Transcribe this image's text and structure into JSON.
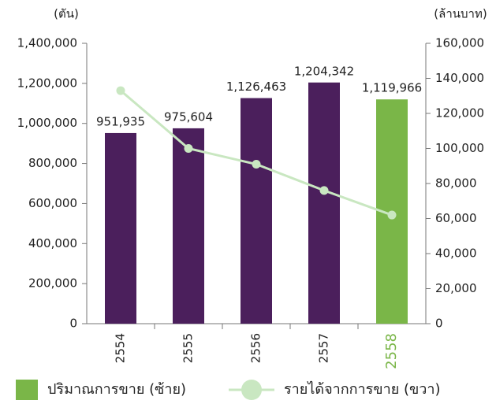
{
  "chart_data": {
    "type": "bar",
    "ylabel": "(ตัน)",
    "y2label": "(ล้านบาท)",
    "categories": [
      "2554",
      "2555",
      "2556",
      "2557",
      "2558"
    ],
    "series": [
      {
        "name": "ปริมาณการขาย (ซ้าย)",
        "type": "bar",
        "color": "#7ab648",
        "point_colors": [
          "#4b1f5c",
          "#4b1f5c",
          "#4b1f5c",
          "#4b1f5c",
          "#7ab648"
        ],
        "values": [
          951935,
          975604,
          1126463,
          1204342,
          1119966
        ],
        "value_labels": [
          "951,935",
          "975,604",
          "1,126,463",
          "1,204,342",
          "1,119,966"
        ]
      },
      {
        "name": "รายได้จากการขาย (ขวา)",
        "type": "line",
        "axis": "y2",
        "color": "#c9e7c1",
        "values": [
          133000,
          100000,
          91000,
          76000,
          62000
        ]
      }
    ],
    "ylim": [
      0,
      1400000
    ],
    "yticks": [
      0,
      {
        "value": 200000,
        "label": "200,000"
      },
      {
        "value": 400000,
        "label": "400,000"
      },
      {
        "value": 600000,
        "label": "600,000"
      },
      {
        "value": 800000,
        "label": "800,000"
      },
      {
        "value": 1000000,
        "label": "1,000,000"
      },
      {
        "value": 1200000,
        "label": "1,200,000"
      },
      {
        "value": 1400000,
        "label": "1,400,000"
      }
    ],
    "y2lim": [
      0,
      160000
    ],
    "y2ticks": [
      0,
      {
        "value": 20000,
        "label": "20,000"
      },
      {
        "value": 40000,
        "label": "40,000"
      },
      {
        "value": 60000,
        "label": "60,000"
      },
      {
        "value": 80000,
        "label": "80,000"
      },
      {
        "value": 100000,
        "label": "100,000"
      },
      {
        "value": 120000,
        "label": "120,000"
      },
      {
        "value": 140000,
        "label": "140,000"
      },
      {
        "value": 160000,
        "label": "160,000"
      }
    ],
    "legend": "bottom"
  }
}
